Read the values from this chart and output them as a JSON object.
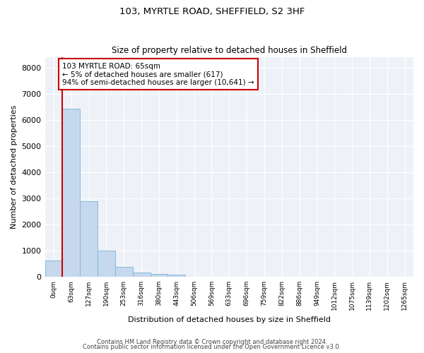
{
  "title1": "103, MYRTLE ROAD, SHEFFIELD, S2 3HF",
  "title2": "Size of property relative to detached houses in Sheffield",
  "xlabel": "Distribution of detached houses by size in Sheffield",
  "ylabel": "Number of detached properties",
  "bar_color": "#c5d8ed",
  "bar_edge_color": "#7ab4d4",
  "background_color": "#eef2f8",
  "vline_color": "#cc0000",
  "annotation_box_color": "#cc0000",
  "categories": [
    "0sqm",
    "63sqm",
    "127sqm",
    "190sqm",
    "253sqm",
    "316sqm",
    "380sqm",
    "443sqm",
    "506sqm",
    "569sqm",
    "633sqm",
    "696sqm",
    "759sqm",
    "822sqm",
    "886sqm",
    "949sqm",
    "1012sqm",
    "1075sqm",
    "1139sqm",
    "1202sqm",
    "1265sqm"
  ],
  "values": [
    620,
    6430,
    2900,
    1000,
    370,
    175,
    100,
    75,
    0,
    0,
    0,
    0,
    0,
    0,
    0,
    0,
    0,
    0,
    0,
    0,
    0
  ],
  "ylim": [
    0,
    8400
  ],
  "yticks": [
    0,
    1000,
    2000,
    3000,
    4000,
    5000,
    6000,
    7000,
    8000
  ],
  "annotation_lines": [
    "103 MYRTLE ROAD: 65sqm",
    "← 5% of detached houses are smaller (617)",
    "94% of semi-detached houses are larger (10,641) →"
  ],
  "footer1": "Contains HM Land Registry data © Crown copyright and database right 2024.",
  "footer2": "Contains public sector information licensed under the Open Government Licence v3.0.",
  "vline_x_index": 1
}
